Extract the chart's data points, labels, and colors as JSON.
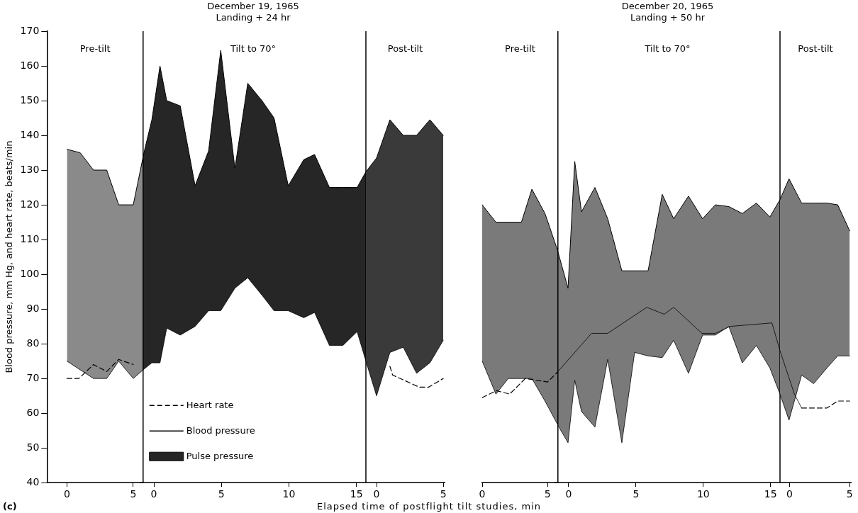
{
  "chart_data": [
    {
      "type": "line",
      "ylabel": "Blood pressure, mm Hg, and heart rate, beats/min",
      "xlim": [
        -1.5,
        5.75
      ],
      "xticks": [
        0,
        5
      ],
      "ylim": [
        40,
        170
      ],
      "yticks": [
        40,
        50,
        60,
        70,
        80,
        90,
        100,
        110,
        120,
        130,
        140,
        150,
        160,
        170
      ],
      "grid": false,
      "marker": "none",
      "annotations": [
        "Pre-tilt",
        "(c)"
      ],
      "series": [
        {
          "type": "line",
          "line_style": "dashed",
          "color": "#000000",
          "x": [
            0,
            0.9,
            2,
            3,
            3.9,
            5
          ],
          "values": [
            70,
            70,
            74,
            72,
            75.5,
            74
          ]
        },
        {
          "type": "line",
          "color": "#000000",
          "x": [
            0,
            1,
            2,
            3,
            3.9,
            5,
            5.75
          ],
          "values": [
            75,
            72.5,
            70,
            70,
            75,
            70,
            72.5
          ]
        },
        {
          "type": "area",
          "color": "#8a8a8a",
          "x": [
            0,
            1,
            2,
            3,
            3.9,
            5,
            5.75
          ],
          "values": [
            136,
            135,
            130,
            130,
            120,
            120,
            134
          ]
        }
      ]
    },
    {
      "type": "line",
      "title": "December 19, 1965",
      "subtitle": "Landing + 24 hr",
      "xlabel": "Elapsed time of postflight tilt studies, min",
      "xlim": [
        -1,
        15.7
      ],
      "xticks": [
        0,
        5,
        10,
        15
      ],
      "ylim": [
        40,
        170
      ],
      "yticks": [
        40,
        50,
        60,
        70,
        80,
        90,
        100,
        110,
        120,
        130,
        140,
        150,
        160,
        170
      ],
      "tick_labels": "x",
      "grid": false,
      "marker": "none",
      "legend": "bottom left",
      "annotations": [
        "Tilt to 70°"
      ],
      "ref_lines": [
        {
          "axis": "x",
          "value": -0.8,
          "color": "#000000"
        },
        {
          "axis": "x",
          "value": 15.7,
          "color": "#000000"
        }
      ],
      "series": [
        {
          "name": "Heart rate",
          "type": "line",
          "line_style": "dashed",
          "color": "#000000"
        },
        {
          "name": "Blood pressure",
          "type": "line",
          "color": "#000000",
          "x": [
            -0.8,
            -0.15,
            0.45,
            0.95,
            1.95,
            3.05,
            4.05,
            4.95,
            6,
            6.95,
            8,
            8.9,
            9.95,
            11.1,
            11.9,
            13,
            14,
            15.05,
            15.7
          ],
          "values": [
            72.5,
            74.5,
            74.5,
            84.5,
            82.5,
            85,
            89.5,
            89.5,
            96,
            99,
            94,
            89.5,
            89.5,
            87.5,
            89,
            79.5,
            79.5,
            83.5,
            75
          ]
        },
        {
          "name": "Pulse pressure",
          "type": "area",
          "color": "#262626",
          "x": [
            -0.8,
            -0.15,
            0.45,
            0.95,
            1.95,
            3.05,
            4.05,
            4.95,
            6,
            6.95,
            8,
            8.9,
            9.95,
            11.1,
            11.9,
            13,
            14,
            15.05,
            15.7
          ],
          "values": [
            134,
            144.5,
            160,
            150,
            148.5,
            125.5,
            135.5,
            164.5,
            130.5,
            155,
            150,
            145,
            125.5,
            133,
            134.5,
            125,
            125,
            125,
            129.5
          ]
        }
      ]
    },
    {
      "type": "line",
      "xlim": [
        -0.8,
        5.1
      ],
      "xticks": [
        0,
        5
      ],
      "ylim": [
        40,
        170
      ],
      "yticks": [
        40,
        50,
        60,
        70,
        80,
        90,
        100,
        110,
        120,
        130,
        140,
        150,
        160,
        170
      ],
      "tick_labels": "x",
      "grid": false,
      "marker": "none",
      "annotations": [
        "Post-tilt"
      ],
      "series": [
        {
          "type": "line",
          "line_style": "dashed",
          "color": "#000000",
          "x": [
            1,
            1.2,
            3.2,
            3.9,
            5
          ],
          "values": [
            73.5,
            71,
            67.5,
            67.5,
            70
          ]
        },
        {
          "type": "line",
          "color": "#000000",
          "x": [
            -0.8,
            0,
            1,
            2,
            3,
            4,
            5
          ],
          "values": [
            75,
            65,
            77.5,
            79,
            71.5,
            74.5,
            81
          ]
        },
        {
          "type": "area",
          "color": "#3a3a3a",
          "x": [
            -0.8,
            0,
            1,
            2,
            3,
            4,
            5
          ],
          "values": [
            129.5,
            133.5,
            144.5,
            140,
            140,
            144.5,
            140
          ]
        }
      ]
    },
    {
      "type": "line",
      "xlim": [
        0,
        5.8
      ],
      "xticks": [
        0,
        5
      ],
      "ylim": [
        40,
        170
      ],
      "yticks": [
        40,
        50,
        60,
        70,
        80,
        90,
        100,
        110,
        120,
        130,
        140,
        150,
        160,
        170
      ],
      "tick_labels": "x",
      "grid": false,
      "marker": "none",
      "annotations": [
        "Pre-tilt"
      ],
      "series": [
        {
          "type": "line",
          "line_style": "dashed",
          "color": "#000000",
          "x": [
            0,
            1.1,
            2.1,
            3.3,
            5,
            5.8
          ],
          "values": [
            64.5,
            66.5,
            65.5,
            70,
            69,
            72
          ]
        },
        {
          "type": "line",
          "color": "#000000",
          "x": [
            0,
            1.05,
            2,
            3,
            3.8,
            4.8,
            5.8
          ],
          "values": [
            75,
            65.5,
            70,
            70,
            70,
            63.5,
            56.5
          ]
        },
        {
          "type": "area",
          "color": "#7a7a7a",
          "x": [
            0,
            1.05,
            2,
            3,
            3.8,
            4.8,
            5.8
          ],
          "values": [
            120,
            115,
            115,
            115,
            124.5,
            117.5,
            106.5
          ]
        }
      ]
    },
    {
      "type": "line",
      "title": "December 20, 1965",
      "subtitle": "Landing + 50 hr",
      "xlim": [
        -1,
        15.7
      ],
      "xticks": [
        0,
        5,
        10,
        15
      ],
      "ylim": [
        40,
        170
      ],
      "yticks": [
        40,
        50,
        60,
        70,
        80,
        90,
        100,
        110,
        120,
        130,
        140,
        150,
        160,
        170
      ],
      "tick_labels": "x",
      "grid": false,
      "marker": "none",
      "annotations": [
        "Tilt to 70°"
      ],
      "ref_lines": [
        {
          "axis": "x",
          "value": -0.8,
          "color": "#000000"
        },
        {
          "axis": "x",
          "value": 15.7,
          "color": "#000000"
        }
      ],
      "series": [
        {
          "type": "line",
          "color": "#000000",
          "x": [
            -0.8,
            1.7,
            2.9,
            5.8,
            7.1,
            7.8,
            9.9,
            10.9,
            12,
            15.1,
            15.7
          ],
          "values": [
            72,
            83,
            83,
            90.5,
            88.5,
            90.5,
            83,
            83,
            85,
            86,
            78
          ]
        },
        {
          "type": "line",
          "color": "#000000",
          "x": [
            -0.8,
            -0.05,
            0.45,
            0.95,
            1.95,
            2.9,
            3.95,
            4.9,
            5.9,
            6.95,
            7.8,
            8.9,
            9.95,
            10.9,
            11.9,
            12.9,
            13.95,
            14.95,
            15.7
          ],
          "values": [
            56.5,
            51.5,
            69.5,
            60.5,
            56,
            75.5,
            51.5,
            77.5,
            76.5,
            76,
            81,
            71.5,
            82.5,
            82.5,
            85,
            74.5,
            79.5,
            73,
            65.5
          ]
        },
        {
          "type": "area",
          "color": "#7a7a7a",
          "x": [
            -0.8,
            -0.05,
            0.45,
            0.95,
            1.95,
            2.9,
            3.95,
            4.9,
            5.9,
            6.95,
            7.8,
            8.9,
            9.95,
            10.9,
            11.9,
            12.9,
            13.95,
            14.95,
            15.7
          ],
          "values": [
            106.5,
            96,
            132.5,
            118,
            125,
            116,
            101,
            101,
            101,
            123,
            116,
            122.5,
            116,
            120,
            119.5,
            117.5,
            120.5,
            116.5,
            121.5
          ]
        }
      ]
    },
    {
      "type": "line",
      "xlim": [
        -0.8,
        5.1
      ],
      "xticks": [
        0,
        5
      ],
      "ylim": [
        40,
        170
      ],
      "yticks": [
        40,
        50,
        60,
        70,
        80,
        90,
        100,
        110,
        120,
        130,
        140,
        150,
        160,
        170
      ],
      "tick_labels": "x",
      "grid": false,
      "marker": "none",
      "annotations": [
        "Post-tilt"
      ],
      "series": [
        {
          "type": "line",
          "line_style": "dashed",
          "color": "#000000",
          "x": [
            1,
            3.1,
            4,
            5
          ],
          "values": [
            61.5,
            61.5,
            63.5,
            63.5
          ]
        },
        {
          "type": "line",
          "color": "#000000",
          "x": [
            -0.8,
            0.4,
            1
          ],
          "values": [
            78,
            65.5,
            61.5
          ]
        },
        {
          "type": "line",
          "color": "#000000",
          "x": [
            -0.8,
            -0.05,
            1,
            2,
            3.1,
            4,
            5
          ],
          "values": [
            65.5,
            58,
            71,
            68.5,
            73,
            76.5,
            76.5
          ]
        },
        {
          "type": "area",
          "color": "#7a7a7a",
          "x": [
            -0.8,
            -0.05,
            1,
            2,
            3.1,
            4,
            5
          ],
          "values": [
            121.5,
            127.5,
            120.5,
            120.5,
            120.5,
            120,
            112.5
          ]
        }
      ]
    }
  ]
}
